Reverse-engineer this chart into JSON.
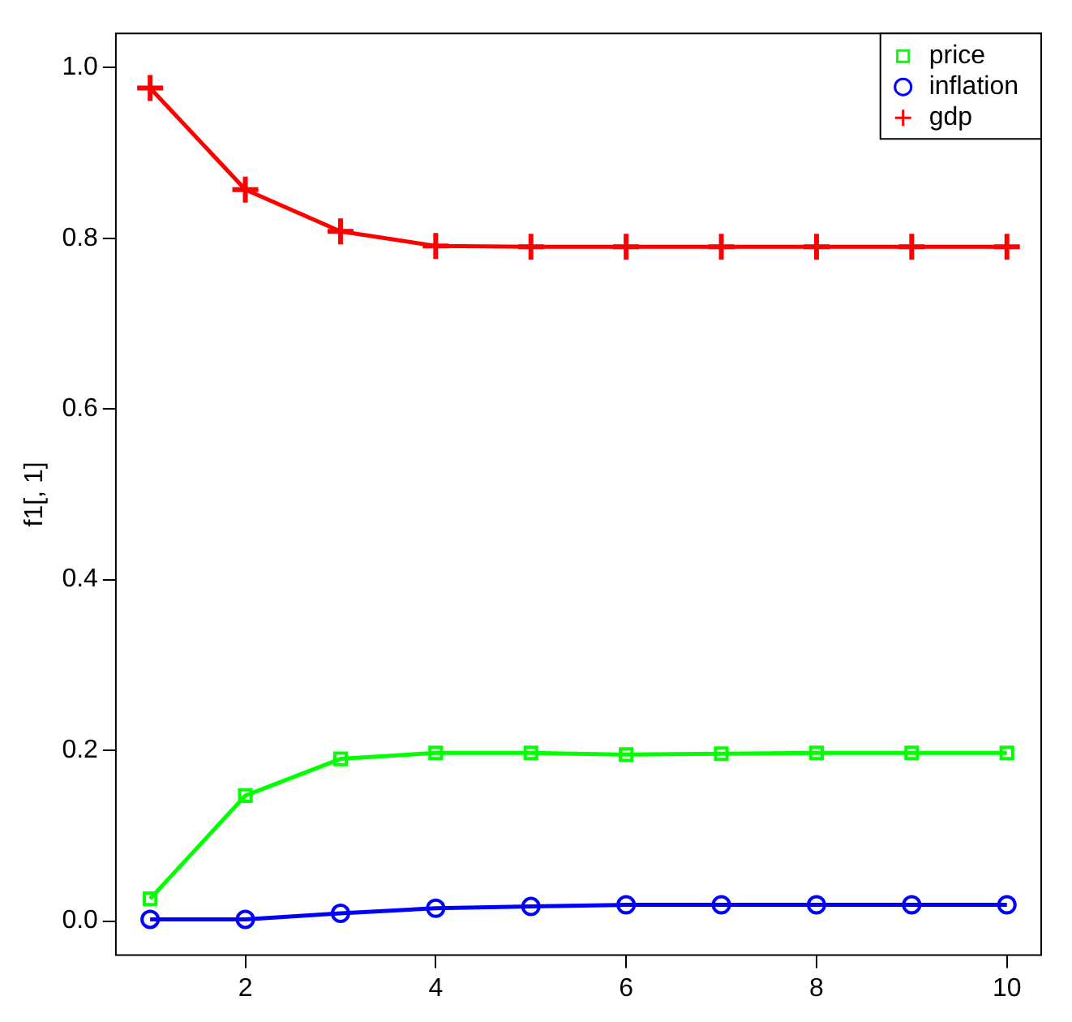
{
  "chart_data": {
    "type": "line",
    "ylabel": "f1[, 1]",
    "x": [
      1,
      2,
      3,
      4,
      5,
      6,
      7,
      8,
      9,
      10
    ],
    "series": [
      {
        "name": "price",
        "color": "#00ff00",
        "marker": "square",
        "values": [
          0.026,
          0.147,
          0.19,
          0.197,
          0.197,
          0.195,
          0.196,
          0.197,
          0.197,
          0.197
        ]
      },
      {
        "name": "inflation",
        "color": "#0000ff",
        "marker": "circle",
        "values": [
          0.002,
          0.002,
          0.009,
          0.015,
          0.017,
          0.019,
          0.019,
          0.019,
          0.019,
          0.019
        ]
      },
      {
        "name": "gdp",
        "color": "#ff0000",
        "marker": "cross",
        "values": [
          0.976,
          0.857,
          0.808,
          0.791,
          0.79,
          0.79,
          0.79,
          0.79,
          0.79,
          0.79
        ]
      }
    ],
    "xlim": [
      0.64,
      10.36
    ],
    "xticks": [
      2,
      4,
      6,
      8,
      10
    ],
    "ylim": [
      -0.04,
      1.04
    ],
    "yticks": [
      {
        "value": 0,
        "label": "0.0"
      },
      0.2,
      0.4,
      0.6,
      0.8,
      {
        "value": 1,
        "label": "1.0"
      }
    ],
    "grid": false,
    "legend": "top right"
  }
}
